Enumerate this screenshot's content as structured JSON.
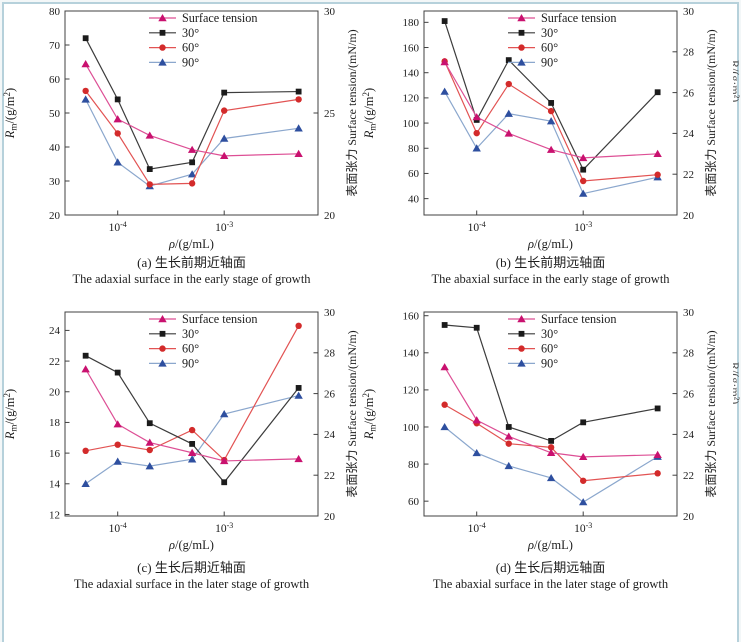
{
  "figure": {
    "border_color": "#b6d1db",
    "background": "#ffffff",
    "text_color": "#1c1c1c"
  },
  "axis_shared": {
    "xlabel": "*ρ*/(g/mL)",
    "ylabel_left": "*R*_{m}/(g/m^{2})",
    "ylabel_right": "表面张力 Surface tension/(mN/m)",
    "xscale": "log",
    "xlim": [
      3.2e-05,
      0.0076
    ],
    "xticks": [
      0.0001,
      0.001
    ],
    "xtick_labels": [
      "10^{-4}",
      "10^{-3}"
    ],
    "ylim_right": [
      20,
      30
    ],
    "grid": false,
    "legend_position": "upper-right-inside",
    "edge_fragment": "R/(g·m²)"
  },
  "series_style": [
    {
      "name": "Surface tension",
      "marker": "triangle",
      "line_color": "#dd4f95",
      "marker_color": "#c9116f",
      "axis": "right"
    },
    {
      "name": "30°",
      "marker": "square",
      "line_color": "#3c3c3c",
      "marker_color": "#1b1b1b",
      "axis": "left"
    },
    {
      "name": "60°",
      "marker": "circle",
      "line_color": "#e25353",
      "marker_color": "#d32b2b",
      "axis": "left"
    },
    {
      "name": "90°",
      "marker": "triangle",
      "line_color": "#8ba7cd",
      "marker_color": "#2e4f9f",
      "axis": "left"
    }
  ],
  "chart_data": [
    {
      "id": "a",
      "type": "line",
      "x": [
        5e-05,
        0.0001,
        0.0002,
        0.0005,
        0.001,
        0.005
      ],
      "ylim_left": [
        20,
        80
      ],
      "yticks_left": [
        20,
        30,
        40,
        50,
        60,
        70,
        80
      ],
      "yticks_right": [
        20,
        25,
        30
      ],
      "series": [
        {
          "name": "Surface tension",
          "axis": "right",
          "values": [
            27.4,
            24.7,
            23.9,
            23.2,
            22.9,
            23.0
          ]
        },
        {
          "name": "30°",
          "axis": "left",
          "values": [
            72,
            54,
            33.5,
            35.5,
            56,
            56.3
          ]
        },
        {
          "name": "60°",
          "axis": "left",
          "values": [
            56.5,
            44,
            29,
            29.3,
            50.7,
            54
          ]
        },
        {
          "name": "90°",
          "axis": "left",
          "values": [
            54,
            35.5,
            28.5,
            32,
            42.5,
            45.5
          ]
        }
      ],
      "caption_zh": "(a) 生长前期近轴面",
      "caption_en": "The adaxial surface in the early stage of growth"
    },
    {
      "id": "b",
      "type": "line",
      "x": [
        5e-05,
        0.0001,
        0.0002,
        0.0005,
        0.001,
        0.005
      ],
      "ylim_left": [
        27,
        189
      ],
      "yticks_left": [
        40,
        60,
        80,
        100,
        120,
        140,
        160,
        180
      ],
      "yticks_right": [
        20,
        22,
        24,
        26,
        28,
        30
      ],
      "series": [
        {
          "name": "Surface tension",
          "axis": "right",
          "values": [
            27.5,
            24.8,
            24.0,
            23.2,
            22.8,
            23.0
          ]
        },
        {
          "name": "30°",
          "axis": "left",
          "values": [
            181,
            102.5,
            150,
            116,
            63,
            124.5
          ]
        },
        {
          "name": "60°",
          "axis": "left",
          "values": [
            149,
            92,
            131,
            109.5,
            54,
            59
          ]
        },
        {
          "name": "90°",
          "axis": "left",
          "values": [
            125,
            80,
            107.5,
            101.5,
            44,
            57
          ]
        }
      ],
      "caption_zh": "(b) 生长前期远轴面",
      "caption_en": "The abaxial surface in the early stage of growth"
    },
    {
      "id": "c",
      "type": "line",
      "x": [
        5e-05,
        0.0001,
        0.0002,
        0.0005,
        0.001,
        0.005
      ],
      "ylim_left": [
        11.9,
        25.2
      ],
      "yticks_left": [
        12,
        14,
        16,
        18,
        20,
        22,
        24
      ],
      "yticks_right": [
        20,
        22,
        24,
        26,
        28,
        30
      ],
      "series": [
        {
          "name": "Surface tension",
          "axis": "right",
          "values": [
            27.2,
            24.5,
            23.6,
            23.1,
            22.7,
            22.8
          ]
        },
        {
          "name": "30°",
          "axis": "left",
          "values": [
            22.35,
            21.25,
            17.95,
            16.6,
            14.1,
            20.25
          ]
        },
        {
          "name": "60°",
          "axis": "left",
          "values": [
            16.15,
            16.55,
            16.2,
            17.5,
            15.55,
            24.3
          ]
        },
        {
          "name": "90°",
          "axis": "left",
          "values": [
            14.0,
            15.45,
            15.15,
            15.6,
            18.55,
            19.75
          ]
        }
      ],
      "caption_zh": "(c) 生长后期近轴面",
      "caption_en": "The adaxial surface in the later stage of growth"
    },
    {
      "id": "d",
      "type": "line",
      "x": [
        5e-05,
        0.0001,
        0.0002,
        0.0005,
        0.001,
        0.005
      ],
      "ylim_left": [
        52,
        162
      ],
      "yticks_left": [
        60,
        80,
        100,
        120,
        140,
        160
      ],
      "yticks_right": [
        20,
        22,
        24,
        26,
        28,
        30
      ],
      "series": [
        {
          "name": "Surface tension",
          "axis": "right",
          "values": [
            27.3,
            24.7,
            23.9,
            23.1,
            22.9,
            23.0
          ]
        },
        {
          "name": "30°",
          "axis": "left",
          "values": [
            155,
            153.5,
            100,
            92.5,
            102.5,
            110
          ]
        },
        {
          "name": "60°",
          "axis": "left",
          "values": [
            112,
            102,
            91,
            89,
            71,
            75
          ]
        },
        {
          "name": "90°",
          "axis": "left",
          "values": [
            100,
            86,
            79,
            72.5,
            59.5,
            84
          ]
        }
      ],
      "caption_zh": "(d) 生长后期远轴面",
      "caption_en": "The abaxial surface in the later stage of growth"
    }
  ]
}
